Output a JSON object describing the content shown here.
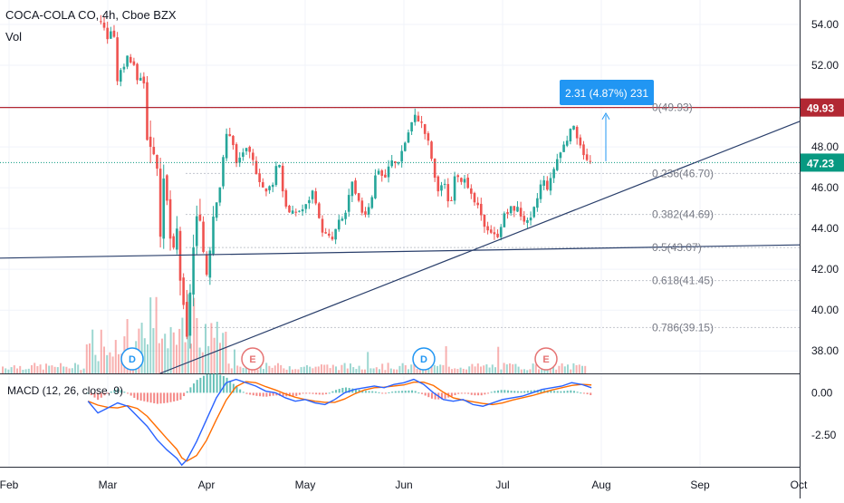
{
  "header": {
    "title": "COCA-COLA CO, 4h, Cboe BZX",
    "volume_label": "Vol",
    "macd_label": "MACD (12, 26, close, 9)"
  },
  "colors": {
    "up": "#26a69a",
    "down": "#ef5350",
    "resistance": "#b22833",
    "trendline": "#2a3f6b",
    "fib": "#9598a1",
    "measure": "#2196f3",
    "macd": "#2962ff",
    "signal": "#ff6d00",
    "last_price": "#089981"
  },
  "chart_data": {
    "type": "candlestick",
    "x_ticks": [
      "Feb",
      "Mar",
      "Apr",
      "May",
      "Jun",
      "Jul",
      "Aug",
      "Sep",
      "Oct"
    ],
    "y_ticks": [
      "54.00",
      "52.00",
      "50.00",
      "48.00",
      "46.00",
      "44.00",
      "42.00",
      "40.00",
      "38.00"
    ],
    "y_range": [
      36.9,
      55.2
    ],
    "last_price": 47.23,
    "resistance_price": 49.93,
    "price_labels": {
      "resistance": "49.93",
      "last": "47.23"
    },
    "fib_levels": [
      {
        "label": "0(49.93)",
        "price": 49.93
      },
      {
        "label": "0.236(46.70)",
        "price": 46.7
      },
      {
        "label": "0.382(44.69)",
        "price": 44.69
      },
      {
        "label": "0.5(43.07)",
        "price": 43.07
      },
      {
        "label": "0.618(41.45)",
        "price": 41.45
      },
      {
        "label": "0.786(39.15)",
        "price": 39.15
      }
    ],
    "measure": {
      "text": "2.31 (4.87%) 231"
    },
    "events": [
      {
        "label": "D",
        "month": "Mar"
      },
      {
        "label": "E",
        "month": "Apr"
      },
      {
        "label": "D",
        "month": "Jun"
      },
      {
        "label": "E",
        "month": "Jul"
      }
    ],
    "macd_ticks": [
      "0.00",
      "-2.50"
    ],
    "macd_range": [
      -4.4,
      1.1
    ],
    "price_series": [
      {
        "m": 0.93,
        "p": 54.2
      },
      {
        "m": 1.0,
        "p": 53.3
      },
      {
        "m": 1.05,
        "p": 54.0
      },
      {
        "m": 1.1,
        "p": 51.2
      },
      {
        "m": 1.2,
        "p": 52.6
      },
      {
        "m": 1.3,
        "p": 51.4
      },
      {
        "m": 1.37,
        "p": 51.3
      },
      {
        "m": 1.4,
        "p": 48.2
      },
      {
        "m": 1.45,
        "p": 48.4
      },
      {
        "m": 1.5,
        "p": 47.3
      },
      {
        "m": 1.52,
        "p": 41.9
      },
      {
        "m": 1.57,
        "p": 46.3
      },
      {
        "m": 1.6,
        "p": 45.2
      },
      {
        "m": 1.66,
        "p": 42.3
      },
      {
        "m": 1.7,
        "p": 43.9
      },
      {
        "m": 1.75,
        "p": 40.6
      },
      {
        "m": 1.8,
        "p": 38.3
      },
      {
        "m": 1.85,
        "p": 42.4
      },
      {
        "m": 1.9,
        "p": 44.3
      },
      {
        "m": 1.95,
        "p": 43.6
      },
      {
        "m": 2.0,
        "p": 41.9
      },
      {
        "m": 2.07,
        "p": 44.9
      },
      {
        "m": 2.14,
        "p": 46.2
      },
      {
        "m": 2.2,
        "p": 48.6
      },
      {
        "m": 2.25,
        "p": 48.7
      },
      {
        "m": 2.3,
        "p": 47.1
      },
      {
        "m": 2.38,
        "p": 47.9
      },
      {
        "m": 2.45,
        "p": 47.5
      },
      {
        "m": 2.52,
        "p": 46.7
      },
      {
        "m": 2.6,
        "p": 45.7
      },
      {
        "m": 2.67,
        "p": 46.3
      },
      {
        "m": 2.73,
        "p": 47.6
      },
      {
        "m": 2.78,
        "p": 45.6
      },
      {
        "m": 2.85,
        "p": 44.6
      },
      {
        "m": 2.92,
        "p": 44.9
      },
      {
        "m": 3.0,
        "p": 45.0
      },
      {
        "m": 3.07,
        "p": 45.9
      },
      {
        "m": 3.13,
        "p": 44.5
      },
      {
        "m": 3.2,
        "p": 43.7
      },
      {
        "m": 3.27,
        "p": 43.4
      },
      {
        "m": 3.33,
        "p": 44.2
      },
      {
        "m": 3.4,
        "p": 44.6
      },
      {
        "m": 3.47,
        "p": 46.2
      },
      {
        "m": 3.53,
        "p": 45.3
      },
      {
        "m": 3.6,
        "p": 44.7
      },
      {
        "m": 3.67,
        "p": 45.5
      },
      {
        "m": 3.73,
        "p": 47.1
      },
      {
        "m": 3.8,
        "p": 46.4
      },
      {
        "m": 3.87,
        "p": 47.3
      },
      {
        "m": 3.93,
        "p": 47.2
      },
      {
        "m": 4.0,
        "p": 48.1
      },
      {
        "m": 4.07,
        "p": 49.1
      },
      {
        "m": 4.13,
        "p": 49.6
      },
      {
        "m": 4.2,
        "p": 48.9
      },
      {
        "m": 4.27,
        "p": 47.8
      },
      {
        "m": 4.33,
        "p": 45.8
      },
      {
        "m": 4.4,
        "p": 46.3
      },
      {
        "m": 4.47,
        "p": 45.1
      },
      {
        "m": 4.53,
        "p": 46.8
      },
      {
        "m": 4.6,
        "p": 46.4
      },
      {
        "m": 4.67,
        "p": 45.6
      },
      {
        "m": 4.73,
        "p": 45.2
      },
      {
        "m": 4.8,
        "p": 44.3
      },
      {
        "m": 4.87,
        "p": 44.0
      },
      {
        "m": 4.93,
        "p": 43.5
      },
      {
        "m": 5.0,
        "p": 44.5
      },
      {
        "m": 5.07,
        "p": 44.9
      },
      {
        "m": 5.13,
        "p": 45.1
      },
      {
        "m": 5.2,
        "p": 44.6
      },
      {
        "m": 5.27,
        "p": 44.1
      },
      {
        "m": 5.33,
        "p": 45.1
      },
      {
        "m": 5.4,
        "p": 46.4
      },
      {
        "m": 5.47,
        "p": 46.0
      },
      {
        "m": 5.53,
        "p": 47.2
      },
      {
        "m": 5.6,
        "p": 47.9
      },
      {
        "m": 5.67,
        "p": 48.6
      },
      {
        "m": 5.73,
        "p": 48.9
      },
      {
        "m": 5.8,
        "p": 48.1
      },
      {
        "m": 5.85,
        "p": 47.3
      },
      {
        "m": 5.9,
        "p": 47.23
      }
    ],
    "macd_series": [
      {
        "m": 0.8,
        "v": -0.5
      },
      {
        "m": 0.9,
        "v": -1.2
      },
      {
        "m": 1.0,
        "v": -0.9
      },
      {
        "m": 1.1,
        "v": -0.6
      },
      {
        "m": 1.2,
        "v": -0.8
      },
      {
        "m": 1.3,
        "v": -1.4
      },
      {
        "m": 1.4,
        "v": -2.0
      },
      {
        "m": 1.5,
        "v": -2.8
      },
      {
        "m": 1.6,
        "v": -3.4
      },
      {
        "m": 1.7,
        "v": -3.9
      },
      {
        "m": 1.75,
        "v": -4.3
      },
      {
        "m": 1.8,
        "v": -4.0
      },
      {
        "m": 1.9,
        "v": -2.9
      },
      {
        "m": 2.0,
        "v": -1.6
      },
      {
        "m": 2.1,
        "v": -0.3
      },
      {
        "m": 2.2,
        "v": 0.6
      },
      {
        "m": 2.3,
        "v": 0.8
      },
      {
        "m": 2.4,
        "v": 0.6
      },
      {
        "m": 2.5,
        "v": 0.4
      },
      {
        "m": 2.6,
        "v": 0.1
      },
      {
        "m": 2.7,
        "v": 0.0
      },
      {
        "m": 2.8,
        "v": -0.3
      },
      {
        "m": 2.9,
        "v": -0.5
      },
      {
        "m": 3.0,
        "v": -0.4
      },
      {
        "m": 3.1,
        "v": -0.6
      },
      {
        "m": 3.2,
        "v": -0.7
      },
      {
        "m": 3.3,
        "v": -0.4
      },
      {
        "m": 3.4,
        "v": 0.0
      },
      {
        "m": 3.5,
        "v": 0.2
      },
      {
        "m": 3.6,
        "v": 0.3
      },
      {
        "m": 3.7,
        "v": 0.4
      },
      {
        "m": 3.8,
        "v": 0.3
      },
      {
        "m": 3.9,
        "v": 0.5
      },
      {
        "m": 4.0,
        "v": 0.6
      },
      {
        "m": 4.1,
        "v": 0.8
      },
      {
        "m": 4.2,
        "v": 0.5
      },
      {
        "m": 4.3,
        "v": 0.0
      },
      {
        "m": 4.4,
        "v": -0.4
      },
      {
        "m": 4.5,
        "v": -0.5
      },
      {
        "m": 4.6,
        "v": -0.4
      },
      {
        "m": 4.7,
        "v": -0.7
      },
      {
        "m": 4.8,
        "v": -0.8
      },
      {
        "m": 4.9,
        "v": -0.6
      },
      {
        "m": 5.0,
        "v": -0.4
      },
      {
        "m": 5.1,
        "v": -0.3
      },
      {
        "m": 5.2,
        "v": -0.2
      },
      {
        "m": 5.3,
        "v": 0.0
      },
      {
        "m": 5.4,
        "v": 0.2
      },
      {
        "m": 5.5,
        "v": 0.3
      },
      {
        "m": 5.6,
        "v": 0.4
      },
      {
        "m": 5.7,
        "v": 0.6
      },
      {
        "m": 5.8,
        "v": 0.5
      },
      {
        "m": 5.9,
        "v": 0.3
      }
    ]
  }
}
